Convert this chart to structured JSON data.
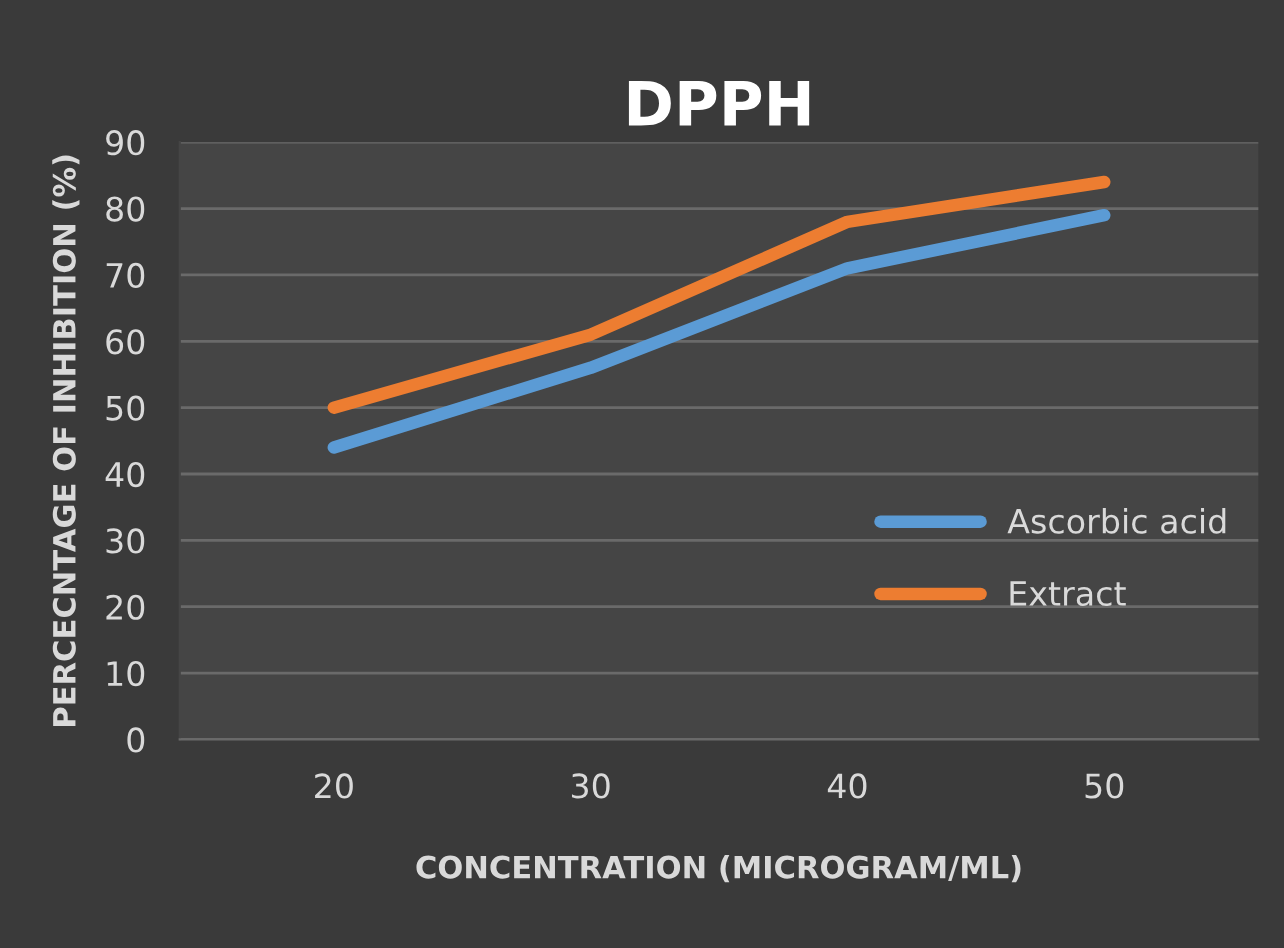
{
  "chart_data": {
    "type": "line",
    "title": "DPPH",
    "xlabel": "CONCENTRATION (MICROGRAM/ML)",
    "ylabel": "PERCECNTAGE OF INHIBITION (%)",
    "categories": [
      "20",
      "30",
      "40",
      "50"
    ],
    "series": [
      {
        "name": "Ascorbic acid",
        "color": "#5b9bd5",
        "values": [
          44,
          56,
          71,
          79
        ]
      },
      {
        "name": "Extract",
        "color": "#ed7d31",
        "values": [
          50,
          61,
          78,
          84
        ]
      }
    ],
    "ylim": [
      0,
      90
    ],
    "yticks": [
      0,
      10,
      20,
      30,
      40,
      50,
      60,
      70,
      80,
      90
    ],
    "grid": "y",
    "legend": "right",
    "marker": "none",
    "line_style": "solid"
  }
}
